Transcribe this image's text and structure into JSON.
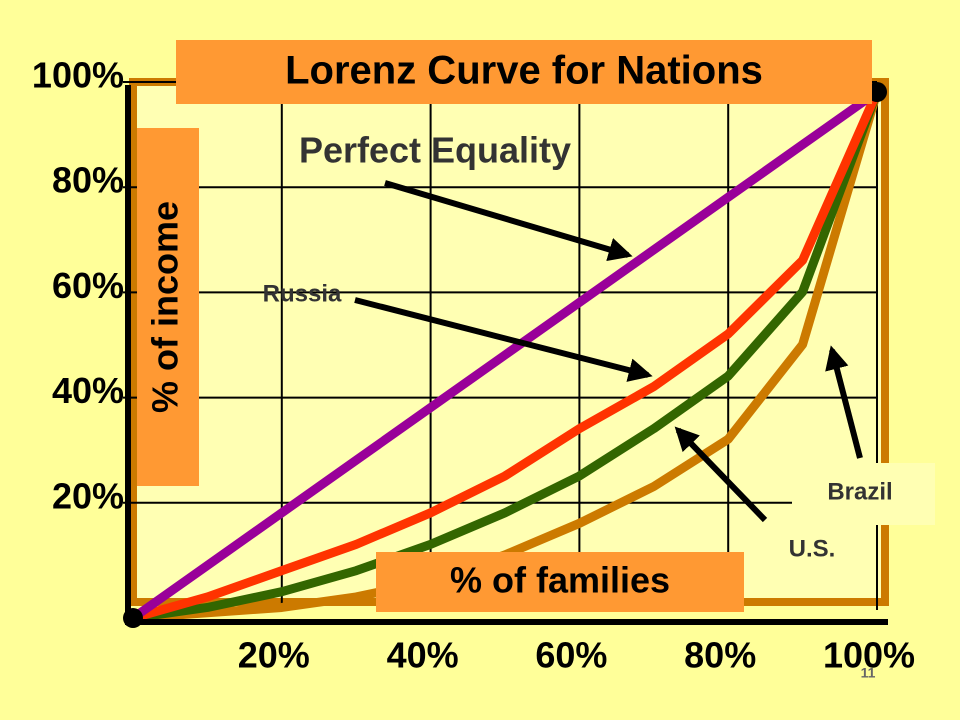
{
  "chart_data": {
    "type": "line",
    "title": "Lorenz Curve for Nations",
    "x_label": "% of families",
    "y_label": "% of income",
    "x": [
      0,
      10,
      20,
      30,
      40,
      50,
      60,
      70,
      80,
      90,
      100
    ],
    "xlim": [
      0,
      100
    ],
    "ylim": [
      0,
      100
    ],
    "xticks": [
      {
        "value": 20,
        "label": "20%"
      },
      {
        "value": 40,
        "label": "40%"
      },
      {
        "value": 60,
        "label": "60%"
      },
      {
        "value": 80,
        "label": "80%"
      },
      {
        "value": 100,
        "label": "100%"
      }
    ],
    "yticks": [
      {
        "value": 20,
        "label": "20%"
      },
      {
        "value": 40,
        "label": "40%"
      },
      {
        "value": 60,
        "label": "60%"
      },
      {
        "value": 80,
        "label": "80%"
      },
      {
        "value": 100,
        "label": "100%"
      }
    ],
    "grid": true,
    "series": [
      {
        "name": "Perfect Equality",
        "color": "#990099",
        "values": [
          0,
          10,
          20,
          30,
          40,
          50,
          60,
          70,
          80,
          90,
          100
        ]
      },
      {
        "name": "Russia",
        "color": "#ff3300",
        "values": [
          0,
          4,
          9,
          14,
          20,
          27,
          36,
          44,
          54,
          68,
          100
        ]
      },
      {
        "name": "U.S.",
        "color": "#336600",
        "values": [
          0,
          2,
          5,
          9,
          14,
          20,
          27,
          36,
          46,
          62,
          100
        ]
      },
      {
        "name": "Brazil",
        "color": "#cc7a00",
        "values": [
          0,
          1,
          2,
          4,
          7,
          12,
          18,
          25,
          34,
          52,
          100
        ]
      }
    ]
  },
  "slide_number": "11"
}
